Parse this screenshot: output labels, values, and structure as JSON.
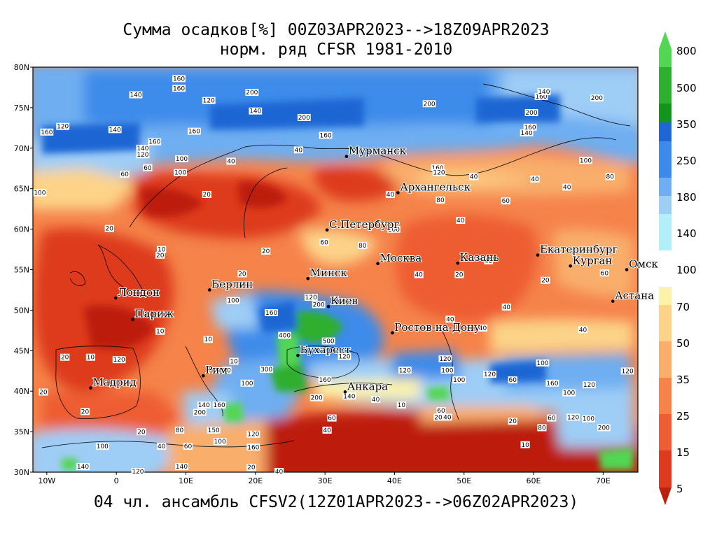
{
  "title": {
    "line1": "Сумма осадков[%] 00Z03APR2023-->18Z09APR2023",
    "line2": "норм. ряд CFSR 1981-2010"
  },
  "footer": "04 чл. ансамбль CFSV2(12Z01APR2023-->06Z02APR2023)",
  "map": {
    "lon_range": [
      -12,
      75
    ],
    "lat_range": [
      30,
      80
    ],
    "lon_ticks": [
      "10W",
      "0",
      "10E",
      "20E",
      "30E",
      "40E",
      "50E",
      "60E",
      "70E"
    ],
    "lat_ticks": [
      "30N",
      "35N",
      "40N",
      "45N",
      "50N",
      "55N",
      "60N",
      "65N",
      "70N",
      "75N",
      "80N"
    ],
    "cities": [
      {
        "name": "Мурманск",
        "lon": 33.1,
        "lat": 68.97
      },
      {
        "name": "Архангельск",
        "lon": 40.5,
        "lat": 64.5
      },
      {
        "name": "С.Петербург",
        "lon": 30.3,
        "lat": 59.9
      },
      {
        "name": "Москва",
        "lon": 37.6,
        "lat": 55.75
      },
      {
        "name": "Казань",
        "lon": 49.1,
        "lat": 55.8
      },
      {
        "name": "Екатеринбург",
        "lon": 60.6,
        "lat": 56.8
      },
      {
        "name": "Курган",
        "lon": 65.3,
        "lat": 55.45
      },
      {
        "name": "Омск",
        "lon": 73.4,
        "lat": 55.0
      },
      {
        "name": "Астана",
        "lon": 71.4,
        "lat": 51.1
      },
      {
        "name": "Минск",
        "lon": 27.55,
        "lat": 53.9
      },
      {
        "name": "Берлин",
        "lon": 13.4,
        "lat": 52.5
      },
      {
        "name": "Лондон",
        "lon": -0.1,
        "lat": 51.5
      },
      {
        "name": "Париж",
        "lon": 2.35,
        "lat": 48.85
      },
      {
        "name": "Киев",
        "lon": 30.5,
        "lat": 50.45
      },
      {
        "name": "Ростов-на-Дону",
        "lon": 39.7,
        "lat": 47.2
      },
      {
        "name": "Бухарест",
        "lon": 26.1,
        "lat": 44.4
      },
      {
        "name": "Рим",
        "lon": 12.5,
        "lat": 41.9
      },
      {
        "name": "Мадрид",
        "lon": -3.7,
        "lat": 40.4
      },
      {
        "name": "Анкара",
        "lon": 32.9,
        "lat": 39.9
      }
    ],
    "contour_labels": [
      {
        "text": "160",
        "lon": 9,
        "lat": 78.5
      },
      {
        "text": "160",
        "lon": 9,
        "lat": 77.3
      },
      {
        "text": "140",
        "lon": 2.8,
        "lat": 76.5
      },
      {
        "text": "200",
        "lon": 19.5,
        "lat": 76.8
      },
      {
        "text": "120",
        "lon": 13.3,
        "lat": 75.8
      },
      {
        "text": "140",
        "lon": 20,
        "lat": 74.5
      },
      {
        "text": "200",
        "lon": 27,
        "lat": 73.7
      },
      {
        "text": "200",
        "lon": 45,
        "lat": 75.4
      },
      {
        "text": "120",
        "lon": -7.7,
        "lat": 72.6
      },
      {
        "text": "140",
        "lon": -0.2,
        "lat": 72.2
      },
      {
        "text": "160",
        "lon": 11.2,
        "lat": 72
      },
      {
        "text": "160",
        "lon": -10,
        "lat": 71.9
      },
      {
        "text": "160",
        "lon": 5.5,
        "lat": 70.7
      },
      {
        "text": "140",
        "lon": 3.8,
        "lat": 69.9
      },
      {
        "text": "120",
        "lon": 3.8,
        "lat": 69.1
      },
      {
        "text": "100",
        "lon": 9.4,
        "lat": 68.6
      },
      {
        "text": "60",
        "lon": 4.5,
        "lat": 67.5
      },
      {
        "text": "160",
        "lon": 30.1,
        "lat": 71.5
      },
      {
        "text": "200",
        "lon": 59.7,
        "lat": 74.3
      },
      {
        "text": "160",
        "lon": 61.1,
        "lat": 76.3
      },
      {
        "text": "200",
        "lon": 69.1,
        "lat": 76.1
      },
      {
        "text": "140",
        "lon": 61.5,
        "lat": 76.9
      },
      {
        "text": "140",
        "lon": 59,
        "lat": 71.8
      },
      {
        "text": "160",
        "lon": 59.5,
        "lat": 72.5
      },
      {
        "text": "100",
        "lon": 67.5,
        "lat": 68.4
      },
      {
        "text": "100",
        "lon": 9.2,
        "lat": 66.9
      },
      {
        "text": "40",
        "lon": 16.5,
        "lat": 68.3
      },
      {
        "text": "20",
        "lon": 13,
        "lat": 64.2
      },
      {
        "text": "60",
        "lon": 1.2,
        "lat": 66.7
      },
      {
        "text": "100",
        "lon": -11,
        "lat": 64.4
      },
      {
        "text": "40",
        "lon": 26.2,
        "lat": 69.7
      },
      {
        "text": "160",
        "lon": 46.2,
        "lat": 67.5
      },
      {
        "text": "120",
        "lon": 46.4,
        "lat": 66.9
      },
      {
        "text": "40",
        "lon": 51.4,
        "lat": 66.4
      },
      {
        "text": "40",
        "lon": 60.2,
        "lat": 66.1
      },
      {
        "text": "40",
        "lon": 64.8,
        "lat": 65.1
      },
      {
        "text": "80",
        "lon": 71,
        "lat": 66.4
      },
      {
        "text": "40",
        "lon": 39.4,
        "lat": 64.2
      },
      {
        "text": "80",
        "lon": 46.6,
        "lat": 63.5
      },
      {
        "text": "60",
        "lon": 56,
        "lat": 63.4
      },
      {
        "text": "40",
        "lon": 49.5,
        "lat": 61
      },
      {
        "text": "100",
        "lon": 39.9,
        "lat": 59.9
      },
      {
        "text": "20",
        "lon": -1,
        "lat": 60
      },
      {
        "text": "10",
        "lon": 6.5,
        "lat": 57.4
      },
      {
        "text": "20",
        "lon": 6.3,
        "lat": 56.7
      },
      {
        "text": "20",
        "lon": 21.5,
        "lat": 57.2
      },
      {
        "text": "60",
        "lon": 29.9,
        "lat": 58.3
      },
      {
        "text": "80",
        "lon": 35.4,
        "lat": 57.9
      },
      {
        "text": "40",
        "lon": 43.5,
        "lat": 54.3
      },
      {
        "text": "40",
        "lon": 53.5,
        "lat": 56
      },
      {
        "text": "20",
        "lon": 49.3,
        "lat": 54.3
      },
      {
        "text": "20",
        "lon": 61.7,
        "lat": 53.6
      },
      {
        "text": "60",
        "lon": 70.2,
        "lat": 54.5
      },
      {
        "text": "40",
        "lon": 48,
        "lat": 48.8
      },
      {
        "text": "40",
        "lon": 56.1,
        "lat": 50.3
      },
      {
        "text": "40",
        "lon": 52.7,
        "lat": 47.7
      },
      {
        "text": "40",
        "lon": 67.1,
        "lat": 47.5
      },
      {
        "text": "160",
        "lon": 22.3,
        "lat": 49.6
      },
      {
        "text": "120",
        "lon": 28,
        "lat": 51.5
      },
      {
        "text": "200",
        "lon": 29.1,
        "lat": 50.6
      },
      {
        "text": "400",
        "lon": 24.2,
        "lat": 46.8
      },
      {
        "text": "500",
        "lon": 30.5,
        "lat": 46.1
      },
      {
        "text": "100",
        "lon": 16.8,
        "lat": 51.1
      },
      {
        "text": "20",
        "lon": 18.1,
        "lat": 54.4
      },
      {
        "text": "10",
        "lon": 6.3,
        "lat": 47.3
      },
      {
        "text": "10",
        "lon": 13.2,
        "lat": 46.3
      },
      {
        "text": "20",
        "lon": -7.4,
        "lat": 44.1
      },
      {
        "text": "10",
        "lon": -3.7,
        "lat": 44.1
      },
      {
        "text": "10",
        "lon": 16.9,
        "lat": 43.6
      },
      {
        "text": "20",
        "lon": 15.9,
        "lat": 42.5
      },
      {
        "text": "300",
        "lon": 21.6,
        "lat": 42.6
      },
      {
        "text": "100",
        "lon": 18.8,
        "lat": 40.9
      },
      {
        "text": "120",
        "lon": 32.8,
        "lat": 44.2
      },
      {
        "text": "160",
        "lon": 30,
        "lat": 41.3
      },
      {
        "text": "200",
        "lon": 28.8,
        "lat": 39.1
      },
      {
        "text": "120",
        "lon": 41.5,
        "lat": 42.5
      },
      {
        "text": "120",
        "lon": 47.3,
        "lat": 43.9
      },
      {
        "text": "100",
        "lon": 47.6,
        "lat": 42.5
      },
      {
        "text": "100",
        "lon": 49.3,
        "lat": 41.3
      },
      {
        "text": "120",
        "lon": 53.7,
        "lat": 42
      },
      {
        "text": "100",
        "lon": 61.3,
        "lat": 43.4
      },
      {
        "text": "60",
        "lon": 57,
        "lat": 41.3
      },
      {
        "text": "160",
        "lon": 62.7,
        "lat": 40.9
      },
      {
        "text": "100",
        "lon": 65.1,
        "lat": 39.7
      },
      {
        "text": "120",
        "lon": 68,
        "lat": 40.7
      },
      {
        "text": "120",
        "lon": 73.5,
        "lat": 42.4
      },
      {
        "text": "100",
        "lon": 67.9,
        "lat": 36.5
      },
      {
        "text": "200",
        "lon": 70.1,
        "lat": 35.4
      },
      {
        "text": "120",
        "lon": 65.7,
        "lat": 36.7
      },
      {
        "text": "120",
        "lon": 0.4,
        "lat": 43.8
      },
      {
        "text": "20",
        "lon": -10.5,
        "lat": 39.8
      },
      {
        "text": "20",
        "lon": -4.5,
        "lat": 37.4
      },
      {
        "text": "10",
        "lon": 41,
        "lat": 38.2
      },
      {
        "text": "60",
        "lon": 46.7,
        "lat": 37.5
      },
      {
        "text": "40",
        "lon": 37.3,
        "lat": 38.9
      },
      {
        "text": "140",
        "lon": 33.5,
        "lat": 39.3
      },
      {
        "text": "40",
        "lon": 30.3,
        "lat": 35.1
      },
      {
        "text": "60",
        "lon": 31,
        "lat": 36.6
      },
      {
        "text": "20",
        "lon": 46.3,
        "lat": 36.7
      },
      {
        "text": "40",
        "lon": 47.6,
        "lat": 36.7
      },
      {
        "text": "20",
        "lon": 57,
        "lat": 36.2
      },
      {
        "text": "60",
        "lon": 62.6,
        "lat": 36.6
      },
      {
        "text": "80",
        "lon": 61.2,
        "lat": 35.4
      },
      {
        "text": "140",
        "lon": 12.6,
        "lat": 38.2
      },
      {
        "text": "160",
        "lon": 14.8,
        "lat": 38.2
      },
      {
        "text": "200",
        "lon": 12,
        "lat": 37.3
      },
      {
        "text": "80",
        "lon": 9.1,
        "lat": 35.1
      },
      {
        "text": "150",
        "lon": 14,
        "lat": 35.1
      },
      {
        "text": "100",
        "lon": 14.9,
        "lat": 33.7
      },
      {
        "text": "120",
        "lon": 19.7,
        "lat": 34.6
      },
      {
        "text": "160",
        "lon": 19.7,
        "lat": 33
      },
      {
        "text": "20",
        "lon": 3.6,
        "lat": 34.9
      },
      {
        "text": "100",
        "lon": -2,
        "lat": 33.1
      },
      {
        "text": "40",
        "lon": 6.5,
        "lat": 33.1
      },
      {
        "text": "60",
        "lon": 10.3,
        "lat": 33.1
      },
      {
        "text": "140",
        "lon": -4.8,
        "lat": 30.6
      },
      {
        "text": "140",
        "lon": 9.4,
        "lat": 30.6
      },
      {
        "text": "120",
        "lon": 3.1,
        "lat": 30
      },
      {
        "text": "20",
        "lon": 19.4,
        "lat": 30.5
      },
      {
        "text": "40",
        "lon": 23.4,
        "lat": 30
      },
      {
        "text": "10",
        "lon": 58.8,
        "lat": 33.3
      }
    ]
  },
  "colorbar": {
    "labels": [
      "800",
      "500",
      "350",
      "250",
      "180",
      "140",
      "100",
      "70",
      "50",
      "35",
      "25",
      "15",
      "5"
    ],
    "colors": [
      "#53d653",
      "#2faf2f",
      "#13941b",
      "#1d66d4",
      "#3c8bea",
      "#6eaef1",
      "#9ecdf6",
      "#b3eff8",
      "#ffffff",
      "#fdf3a8",
      "#fcd389",
      "#f9ae6c",
      "#f5834a",
      "#ee5d33",
      "#dd3a1f",
      "#bd1f0d"
    ]
  }
}
